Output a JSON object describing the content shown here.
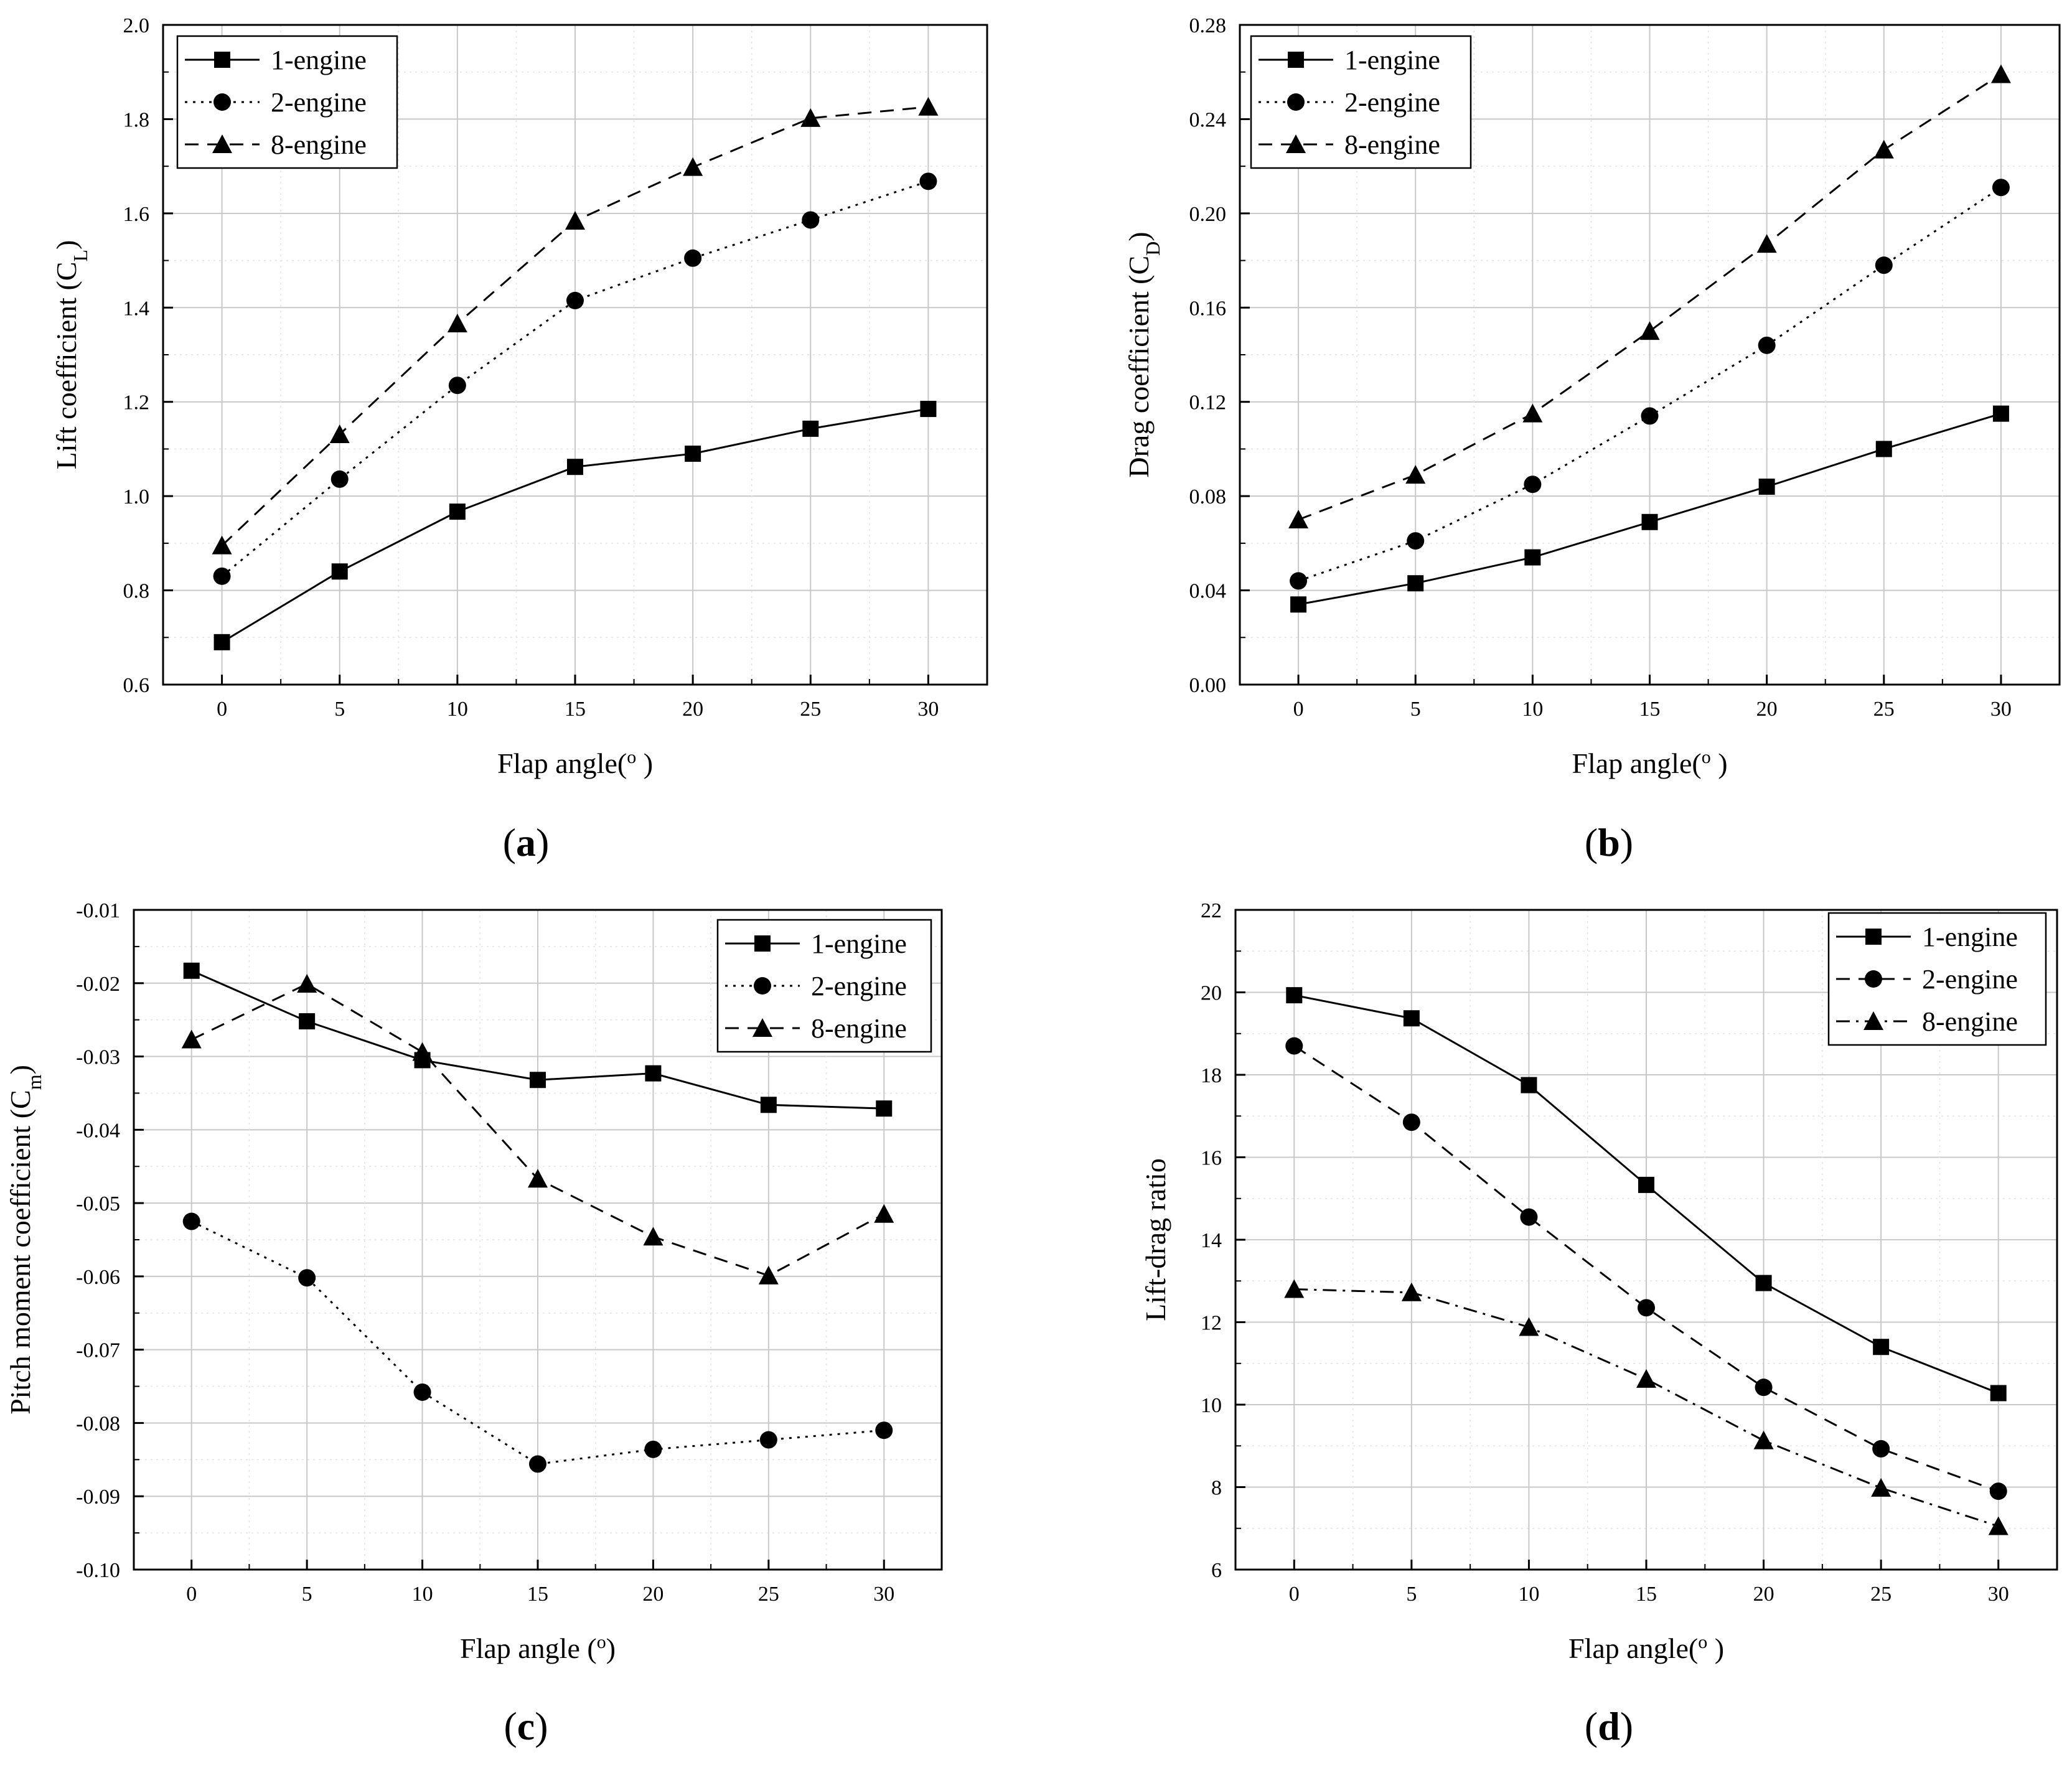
{
  "chart_data": [
    {
      "id": "a",
      "type": "line",
      "panel_label": "a",
      "xlabel": "Flap angle(",
      "xlabel_unit": "o",
      "xlabel_close": " )",
      "ylabel": "Lift coefficient (C",
      "ylabel_sub": "L",
      "ylabel_close": ")",
      "x": [
        0,
        5,
        10,
        15,
        20,
        25,
        30
      ],
      "xlim": [
        -2.5,
        32.5
      ],
      "ylim": [
        0.6,
        2.0
      ],
      "xticks": [
        "0",
        "5",
        "10",
        "15",
        "20",
        "25",
        "30"
      ],
      "yticks": [
        "0.6",
        "0.8",
        "1.0",
        "1.2",
        "1.4",
        "1.6",
        "1.8",
        "2.0"
      ],
      "legend_position": "top-left",
      "series": [
        {
          "name": "1-engine",
          "marker": "square",
          "line": "solid",
          "values": [
            0.69,
            0.84,
            0.967,
            1.062,
            1.09,
            1.143,
            1.185
          ]
        },
        {
          "name": "2-engine",
          "marker": "circle",
          "line": "dotted",
          "values": [
            0.83,
            1.036,
            1.235,
            1.415,
            1.505,
            1.586,
            1.668
          ]
        },
        {
          "name": "8-engine",
          "marker": "triangle",
          "line": "dashed",
          "values": [
            0.895,
            1.131,
            1.366,
            1.584,
            1.698,
            1.802,
            1.826
          ]
        }
      ]
    },
    {
      "id": "b",
      "type": "line",
      "panel_label": "b",
      "xlabel": "Flap angle(",
      "xlabel_unit": "o",
      "xlabel_close": " )",
      "ylabel": "Drag coefficient (C",
      "ylabel_sub": "D",
      "ylabel_close": ")",
      "x": [
        0,
        5,
        10,
        15,
        20,
        25,
        30
      ],
      "xlim": [
        -2.5,
        32.5
      ],
      "ylim": [
        0.0,
        0.28
      ],
      "xticks": [
        "0",
        "5",
        "10",
        "15",
        "20",
        "25",
        "30"
      ],
      "yticks": [
        "0.00",
        "0.04",
        "0.08",
        "0.12",
        "0.16",
        "0.20",
        "0.24",
        "0.28"
      ],
      "legend_position": "top-left",
      "series": [
        {
          "name": "1-engine",
          "marker": "square",
          "line": "solid",
          "values": [
            0.034,
            0.043,
            0.054,
            0.069,
            0.084,
            0.1,
            0.115
          ]
        },
        {
          "name": "2-engine",
          "marker": "circle",
          "line": "dotted",
          "values": [
            0.044,
            0.061,
            0.085,
            0.114,
            0.144,
            0.178,
            0.211
          ]
        },
        {
          "name": "8-engine",
          "marker": "triangle",
          "line": "dashed",
          "values": [
            0.07,
            0.089,
            0.115,
            0.15,
            0.187,
            0.227,
            0.259
          ]
        }
      ]
    },
    {
      "id": "c",
      "type": "line",
      "panel_label": "c",
      "xlabel": "Flap angle (",
      "xlabel_unit": "o",
      "xlabel_close": ")",
      "ylabel": "Pitch moment coefficient (C",
      "ylabel_sub": "m",
      "ylabel_close": ")",
      "x": [
        0,
        5,
        10,
        15,
        20,
        25,
        30
      ],
      "xlim": [
        -2.5,
        32.5
      ],
      "ylim": [
        -0.1,
        -0.01
      ],
      "xticks": [
        "0",
        "5",
        "10",
        "15",
        "20",
        "25",
        "30"
      ],
      "yticks": [
        "-0.10",
        "-0.09",
        "-0.08",
        "-0.07",
        "-0.06",
        "-0.05",
        "-0.04",
        "-0.03",
        "-0.02",
        "-0.01"
      ],
      "legend_position": "top-right",
      "series": [
        {
          "name": "1-engine",
          "marker": "square",
          "line": "solid",
          "values": [
            -0.0183,
            -0.0252,
            -0.0305,
            -0.0332,
            -0.0323,
            -0.0366,
            -0.0371
          ]
        },
        {
          "name": "2-engine",
          "marker": "circle",
          "line": "dotted",
          "values": [
            -0.0525,
            -0.0602,
            -0.0758,
            -0.0856,
            -0.0836,
            -0.0823,
            -0.081
          ]
        },
        {
          "name": "8-engine",
          "marker": "triangle",
          "line": "dashed",
          "values": [
            -0.0277,
            -0.0201,
            -0.0294,
            -0.0467,
            -0.0546,
            -0.0599,
            -0.0515
          ]
        }
      ]
    },
    {
      "id": "d",
      "type": "line",
      "panel_label": "d",
      "xlabel": "Flap angle(",
      "xlabel_unit": "o",
      "xlabel_close": " )",
      "ylabel": "Lift-drag ratio",
      "ylabel_sub": "",
      "ylabel_close": "",
      "x": [
        0,
        5,
        10,
        15,
        20,
        25,
        30
      ],
      "xlim": [
        -2.5,
        32.5
      ],
      "ylim": [
        6,
        22
      ],
      "xticks": [
        "0",
        "5",
        "10",
        "15",
        "20",
        "25",
        "30"
      ],
      "yticks": [
        "6",
        "8",
        "10",
        "12",
        "14",
        "16",
        "18",
        "20",
        "22"
      ],
      "legend_position": "top-right",
      "series": [
        {
          "name": "1-engine",
          "marker": "square",
          "line": "solid",
          "values": [
            19.93,
            19.37,
            17.75,
            15.33,
            12.95,
            11.4,
            10.28
          ]
        },
        {
          "name": "2-engine",
          "marker": "circle",
          "line": "dashed",
          "values": [
            18.7,
            16.85,
            14.55,
            12.35,
            10.42,
            8.93,
            7.9
          ]
        },
        {
          "name": "8-engine",
          "marker": "triangle",
          "line": "dash-dot",
          "values": [
            12.8,
            12.72,
            11.88,
            10.62,
            9.13,
            7.98,
            7.05
          ]
        }
      ]
    }
  ]
}
